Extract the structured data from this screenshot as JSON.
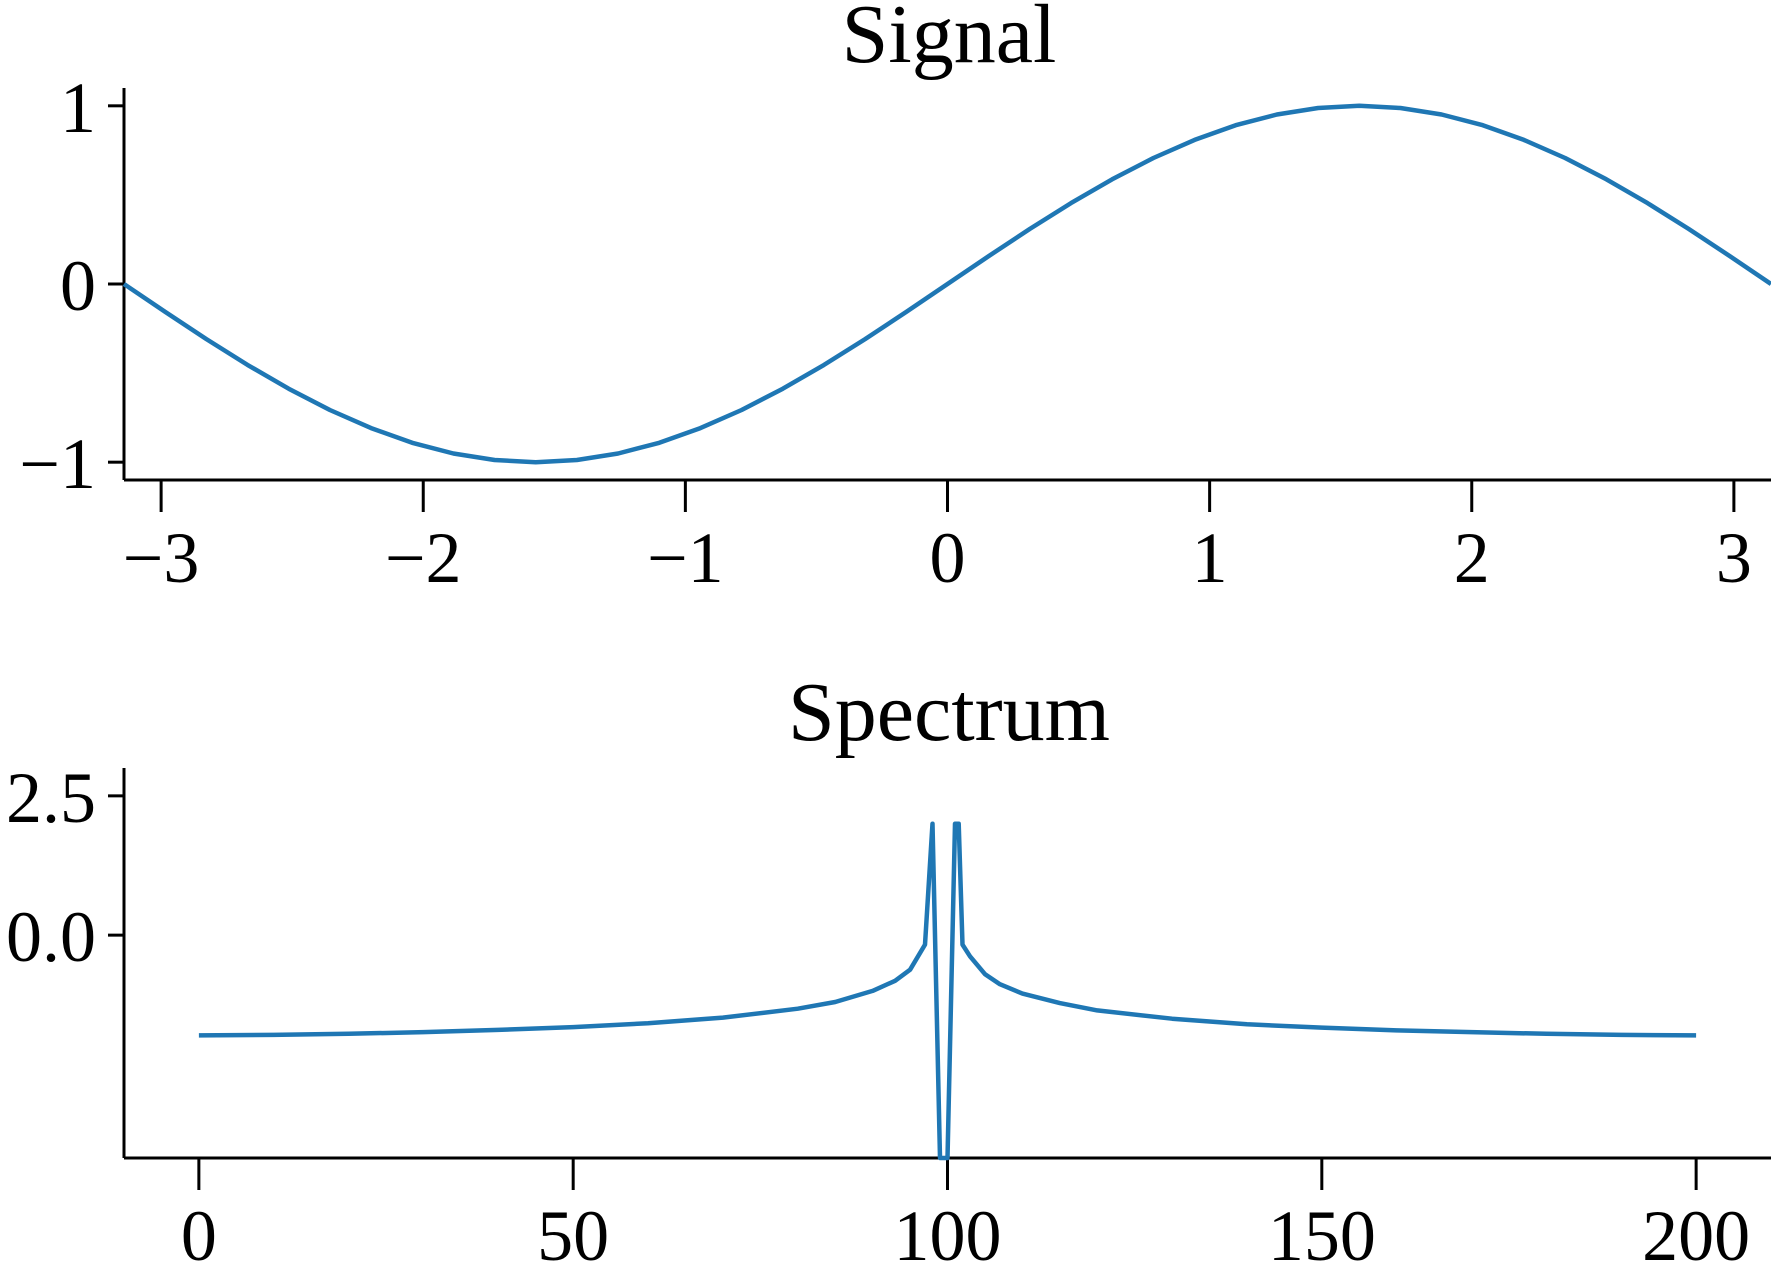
{
  "chart_data": [
    {
      "type": "line",
      "title": "Signal",
      "xlabel": "",
      "ylabel": "",
      "xlim": [
        -3.14159,
        3.14159
      ],
      "ylim": [
        -1.1,
        1.1
      ],
      "xticks": [
        -3,
        -2,
        -1,
        0,
        1,
        2,
        3
      ],
      "xtick_labels": [
        "−3",
        "−2",
        "−1",
        "0",
        "1",
        "2",
        "3"
      ],
      "yticks": [
        -1,
        0,
        1
      ],
      "ytick_labels": [
        "−1",
        "0",
        "1"
      ],
      "grid": false,
      "color": "#1f77b4",
      "series": [
        {
          "x": [
            -3.1416,
            -2.9845,
            -2.8274,
            -2.6704,
            -2.5133,
            -2.3562,
            -2.1991,
            -2.042,
            -1.885,
            -1.7279,
            -1.5708,
            -1.4137,
            -1.2566,
            -1.0996,
            -0.9425,
            -0.7854,
            -0.6283,
            -0.4712,
            -0.3142,
            -0.1571,
            0.0,
            0.1571,
            0.3142,
            0.4712,
            0.6283,
            0.7854,
            0.9425,
            1.0996,
            1.2566,
            1.4137,
            1.5708,
            1.7279,
            1.885,
            2.042,
            2.1991,
            2.3562,
            2.5133,
            2.6704,
            2.8274,
            2.9845,
            3.1416
          ],
          "y": [
            0.0,
            -0.1564,
            -0.309,
            -0.454,
            -0.5878,
            -0.7071,
            -0.809,
            -0.891,
            -0.9511,
            -0.9877,
            -1.0,
            -0.9877,
            -0.9511,
            -0.891,
            -0.809,
            -0.7071,
            -0.5878,
            -0.454,
            -0.309,
            -0.1564,
            0.0,
            0.1564,
            0.309,
            0.454,
            0.5878,
            0.7071,
            0.809,
            0.891,
            0.9511,
            0.9877,
            1.0,
            0.9877,
            0.9511,
            0.891,
            0.809,
            0.7071,
            0.5878,
            0.454,
            0.309,
            0.1564,
            0.0
          ]
        }
      ]
    },
    {
      "type": "line",
      "title": "Spectrum",
      "xlabel": "",
      "ylabel": "",
      "xlim": [
        -10,
        210
      ],
      "ylim": [
        -4.0,
        3.0
      ],
      "xticks": [
        0,
        50,
        100,
        150,
        200
      ],
      "xtick_labels": [
        "0",
        "50",
        "100",
        "150",
        "200"
      ],
      "yticks": [
        0.0,
        2.5
      ],
      "ytick_labels": [
        "0.0",
        "2.5"
      ],
      "grid": false,
      "color": "#1f77b4",
      "series": [
        {
          "x": [
            0,
            10,
            20,
            30,
            40,
            50,
            60,
            70,
            80,
            85,
            90,
            93,
            95,
            97,
            98,
            99,
            99.5,
            100,
            101,
            101.5,
            102,
            103,
            105,
            107,
            110,
            115,
            120,
            130,
            140,
            150,
            160,
            170,
            180,
            190,
            200
          ],
          "y": [
            -1.8,
            -1.79,
            -1.77,
            -1.74,
            -1.7,
            -1.65,
            -1.58,
            -1.48,
            -1.32,
            -1.2,
            -1.0,
            -0.82,
            -0.62,
            -0.17,
            2.0,
            -4.0,
            -4.0,
            -4.0,
            2.0,
            2.0,
            -0.17,
            -0.38,
            -0.7,
            -0.88,
            -1.05,
            -1.22,
            -1.35,
            -1.5,
            -1.6,
            -1.66,
            -1.71,
            -1.74,
            -1.77,
            -1.79,
            -1.8
          ]
        }
      ]
    }
  ]
}
